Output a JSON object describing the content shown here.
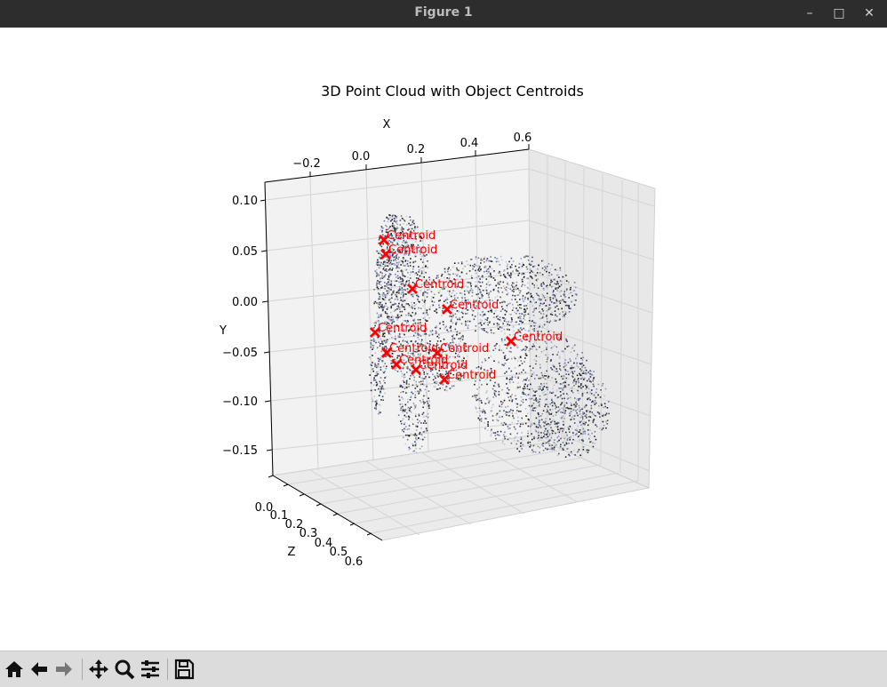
{
  "window": {
    "title": "Figure 1"
  },
  "window_controls": {
    "minimize": "–",
    "maximize": "□",
    "close": "✕"
  },
  "chart_data": {
    "type": "scatter",
    "projection": "3d",
    "title": "3D Point Cloud with Object Centroids",
    "xlabel": "X",
    "ylabel": "Y",
    "zlabel": "Z",
    "x_ticks": [
      "−0.2",
      "0.0",
      "0.2",
      "0.4",
      "0.6"
    ],
    "y_ticks": [
      "0.10",
      "0.05",
      "0.00",
      "−0.05",
      "−0.10",
      "−0.15"
    ],
    "z_ticks": [
      "0.0",
      "0.1",
      "0.2",
      "0.3",
      "0.4",
      "0.5",
      "0.6"
    ],
    "grid": true,
    "series": [
      {
        "name": "",
        "kind": "point cloud (RGB-colored points)",
        "color": "#404040"
      },
      {
        "name": "",
        "kind": "centroids",
        "marker": "X",
        "color": "#ff0000"
      }
    ],
    "centroid_label": "Centroid",
    "centroid_count": 11
  },
  "toolbar": {
    "home": "home-icon",
    "back": "back-arrow-icon",
    "forward": "forward-arrow-icon",
    "pan": "pan-icon",
    "zoom": "zoom-icon",
    "configure": "configure-subplots-icon",
    "save": "save-icon"
  }
}
